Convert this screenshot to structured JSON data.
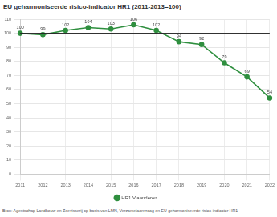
{
  "chart_data": {
    "type": "line",
    "title": "EU geharmoniseerde risico-indicator HR1 (2011-2013=100)",
    "source": "Bron: Agentschap Landbouw en Zeevisserij op basis van LMN, Verzamelaanvraag en EU geharmoniseerde risico-indicator HR1",
    "categories": [
      "2011",
      "2012",
      "2013",
      "2014",
      "2015",
      "2016",
      "2017",
      "2018",
      "2019",
      "2020",
      "2021",
      "2022"
    ],
    "series": [
      {
        "name": "HR1 Vlaanderen",
        "color": "#2f8f3f",
        "values": [
          100,
          99,
          102,
          104,
          103,
          106,
          102,
          94,
          92,
          79,
          69,
          54
        ]
      }
    ],
    "reference_line": 100,
    "ylim": [
      0,
      110
    ],
    "yticks": [
      0,
      10,
      20,
      30,
      40,
      50,
      60,
      70,
      80,
      90,
      100,
      110
    ],
    "grid": true,
    "data_labels": true,
    "legend": "bottom",
    "marker": "circle"
  }
}
